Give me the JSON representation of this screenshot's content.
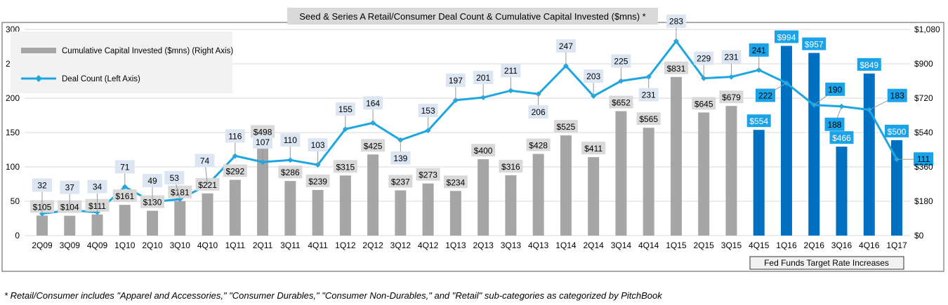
{
  "chart_data": {
    "type": "bar+line",
    "title": "Seed & Series A Retail/Consumer  Deal Count & Cumulative  Capital Invested ($mns) *",
    "categories": [
      "2Q09",
      "3Q09",
      "4Q09",
      "1Q10",
      "2Q10",
      "3Q10",
      "4Q10",
      "1Q11",
      "2Q11",
      "3Q11",
      "4Q11",
      "1Q12",
      "2Q12",
      "3Q12",
      "4Q12",
      "1Q13",
      "2Q13",
      "3Q13",
      "4Q13",
      "1Q14",
      "2Q14",
      "3Q14",
      "4Q14",
      "1Q15",
      "2Q15",
      "3Q15",
      "4Q15",
      "1Q16",
      "2Q16",
      "3Q16",
      "4Q16",
      "1Q17"
    ],
    "series": [
      {
        "name": "Cumulative Capital Invested ($mns) (Right Axis)",
        "type": "bar",
        "axis": "right",
        "values": [
          105,
          104,
          111,
          161,
          130,
          181,
          221,
          292,
          498,
          286,
          239,
          315,
          425,
          237,
          273,
          234,
          400,
          316,
          428,
          525,
          411,
          652,
          565,
          831,
          645,
          679,
          554,
          994,
          957,
          466,
          849,
          500
        ],
        "labels": [
          "$105",
          "$104",
          "$111",
          "$161",
          "$130",
          "$181",
          "$221",
          "$292",
          "$498",
          "$286",
          "$239",
          "$315",
          "$425",
          "$237",
          "$273",
          "$234",
          "$400",
          "$316",
          "$428",
          "$525",
          "$411",
          "$652",
          "$565",
          "$831",
          "$645",
          "$679",
          "$554",
          "$994",
          "$957",
          "$466",
          "$849",
          "$500"
        ]
      },
      {
        "name": "Deal Count (Left Axis)",
        "type": "line",
        "axis": "left",
        "values": [
          32,
          37,
          34,
          71,
          49,
          53,
          74,
          116,
          107,
          110,
          103,
          155,
          164,
          139,
          153,
          197,
          201,
          211,
          206,
          247,
          203,
          225,
          231,
          283,
          229,
          231,
          241,
          222,
          190,
          188,
          183,
          111
        ]
      }
    ],
    "left_axis": {
      "min": 0,
      "max": 300,
      "ticks": [
        "0",
        "50",
        "100",
        "150",
        "200",
        "250",
        "300"
      ]
    },
    "right_axis": {
      "min": 0,
      "max": 1080,
      "ticks": [
        "$0",
        "$180",
        "$360",
        "$540",
        "$720",
        "$900",
        "$1,080"
      ]
    },
    "highlight_from": "4Q15",
    "highlight_label": "Fed Funds Target Rate Increases",
    "grid": true,
    "legend_placement": "top-left",
    "colors": {
      "bar": "#a6a6a6",
      "bar_highlight": "#0070c0",
      "line": "#1ea6e0",
      "label_bg_highlight": "#1aa3e8"
    }
  },
  "footnote": "*  Retail/Consumer includes \"Apparel and Accessories,\" \"Consumer Durables,\" \"Consumer Non-Durables,\" and \"Retail\" sub-categories as categorized by PitchBook"
}
